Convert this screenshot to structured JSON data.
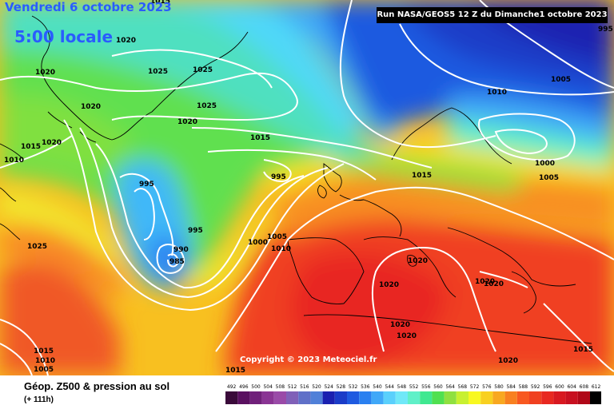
{
  "header": {
    "date": "Vendredi 6 octobre 2023",
    "time": "5:00 locale",
    "run": "Run NASA/GEOS5 12 Z du Dimanche1 octobre 2023"
  },
  "copyright": "Copyright © 2023 Meteociel.fr",
  "footer": {
    "parameter": "Géop. Z500 & pression au sol",
    "lead_time": "(+ 111h)"
  },
  "legend": {
    "values": [
      "492",
      "496",
      "500",
      "504",
      "508",
      "512",
      "516",
      "520",
      "524",
      "528",
      "532",
      "536",
      "540",
      "544",
      "548",
      "552",
      "556",
      "560",
      "564",
      "568",
      "572",
      "576",
      "580",
      "584",
      "588",
      "592",
      "596",
      "600",
      "604",
      "608",
      "612"
    ],
    "colors": [
      "#3a0a3a",
      "#5a1060",
      "#70207a",
      "#8a3494",
      "#9a4aa8",
      "#8060b8",
      "#6070c8",
      "#5080d8",
      "#1a20b0",
      "#1a3cc8",
      "#1e5ae0",
      "#2a80f0",
      "#40a8f8",
      "#5ad0fc",
      "#70e8f8",
      "#60f0c8",
      "#40e890",
      "#50e050",
      "#90e040",
      "#c8f030",
      "#f8f820",
      "#f8d020",
      "#f8a820",
      "#f88020",
      "#f85820",
      "#f04020",
      "#e82820",
      "#d81820",
      "#c81020",
      "#b00818",
      "#000000"
    ]
  },
  "isobar_labels": [
    {
      "text": "1015"
    },
    {
      "text": "1020"
    },
    {
      "text": "1020"
    },
    {
      "text": "1025"
    },
    {
      "text": "1025"
    },
    {
      "text": "1020"
    },
    {
      "text": "1025"
    },
    {
      "text": "1020"
    },
    {
      "text": "1015"
    },
    {
      "text": "1020"
    },
    {
      "text": "1015"
    },
    {
      "text": "1010"
    },
    {
      "text": "995"
    },
    {
      "text": "995"
    },
    {
      "text": "995"
    },
    {
      "text": "990"
    },
    {
      "text": "985"
    },
    {
      "text": "1000"
    },
    {
      "text": "1005"
    },
    {
      "text": "1010"
    },
    {
      "text": "1025"
    },
    {
      "text": "1015"
    },
    {
      "text": "1020"
    },
    {
      "text": "1020"
    },
    {
      "text": "1020"
    },
    {
      "text": "1020"
    },
    {
      "text": "1020"
    },
    {
      "text": "1020"
    },
    {
      "text": "1020"
    },
    {
      "text": "1015"
    },
    {
      "text": "1015"
    },
    {
      "text": "1010"
    },
    {
      "text": "1005"
    },
    {
      "text": "1015"
    },
    {
      "text": "995"
    },
    {
      "text": "1010"
    },
    {
      "text": "1005"
    },
    {
      "text": "1000"
    },
    {
      "text": "1005"
    }
  ]
}
